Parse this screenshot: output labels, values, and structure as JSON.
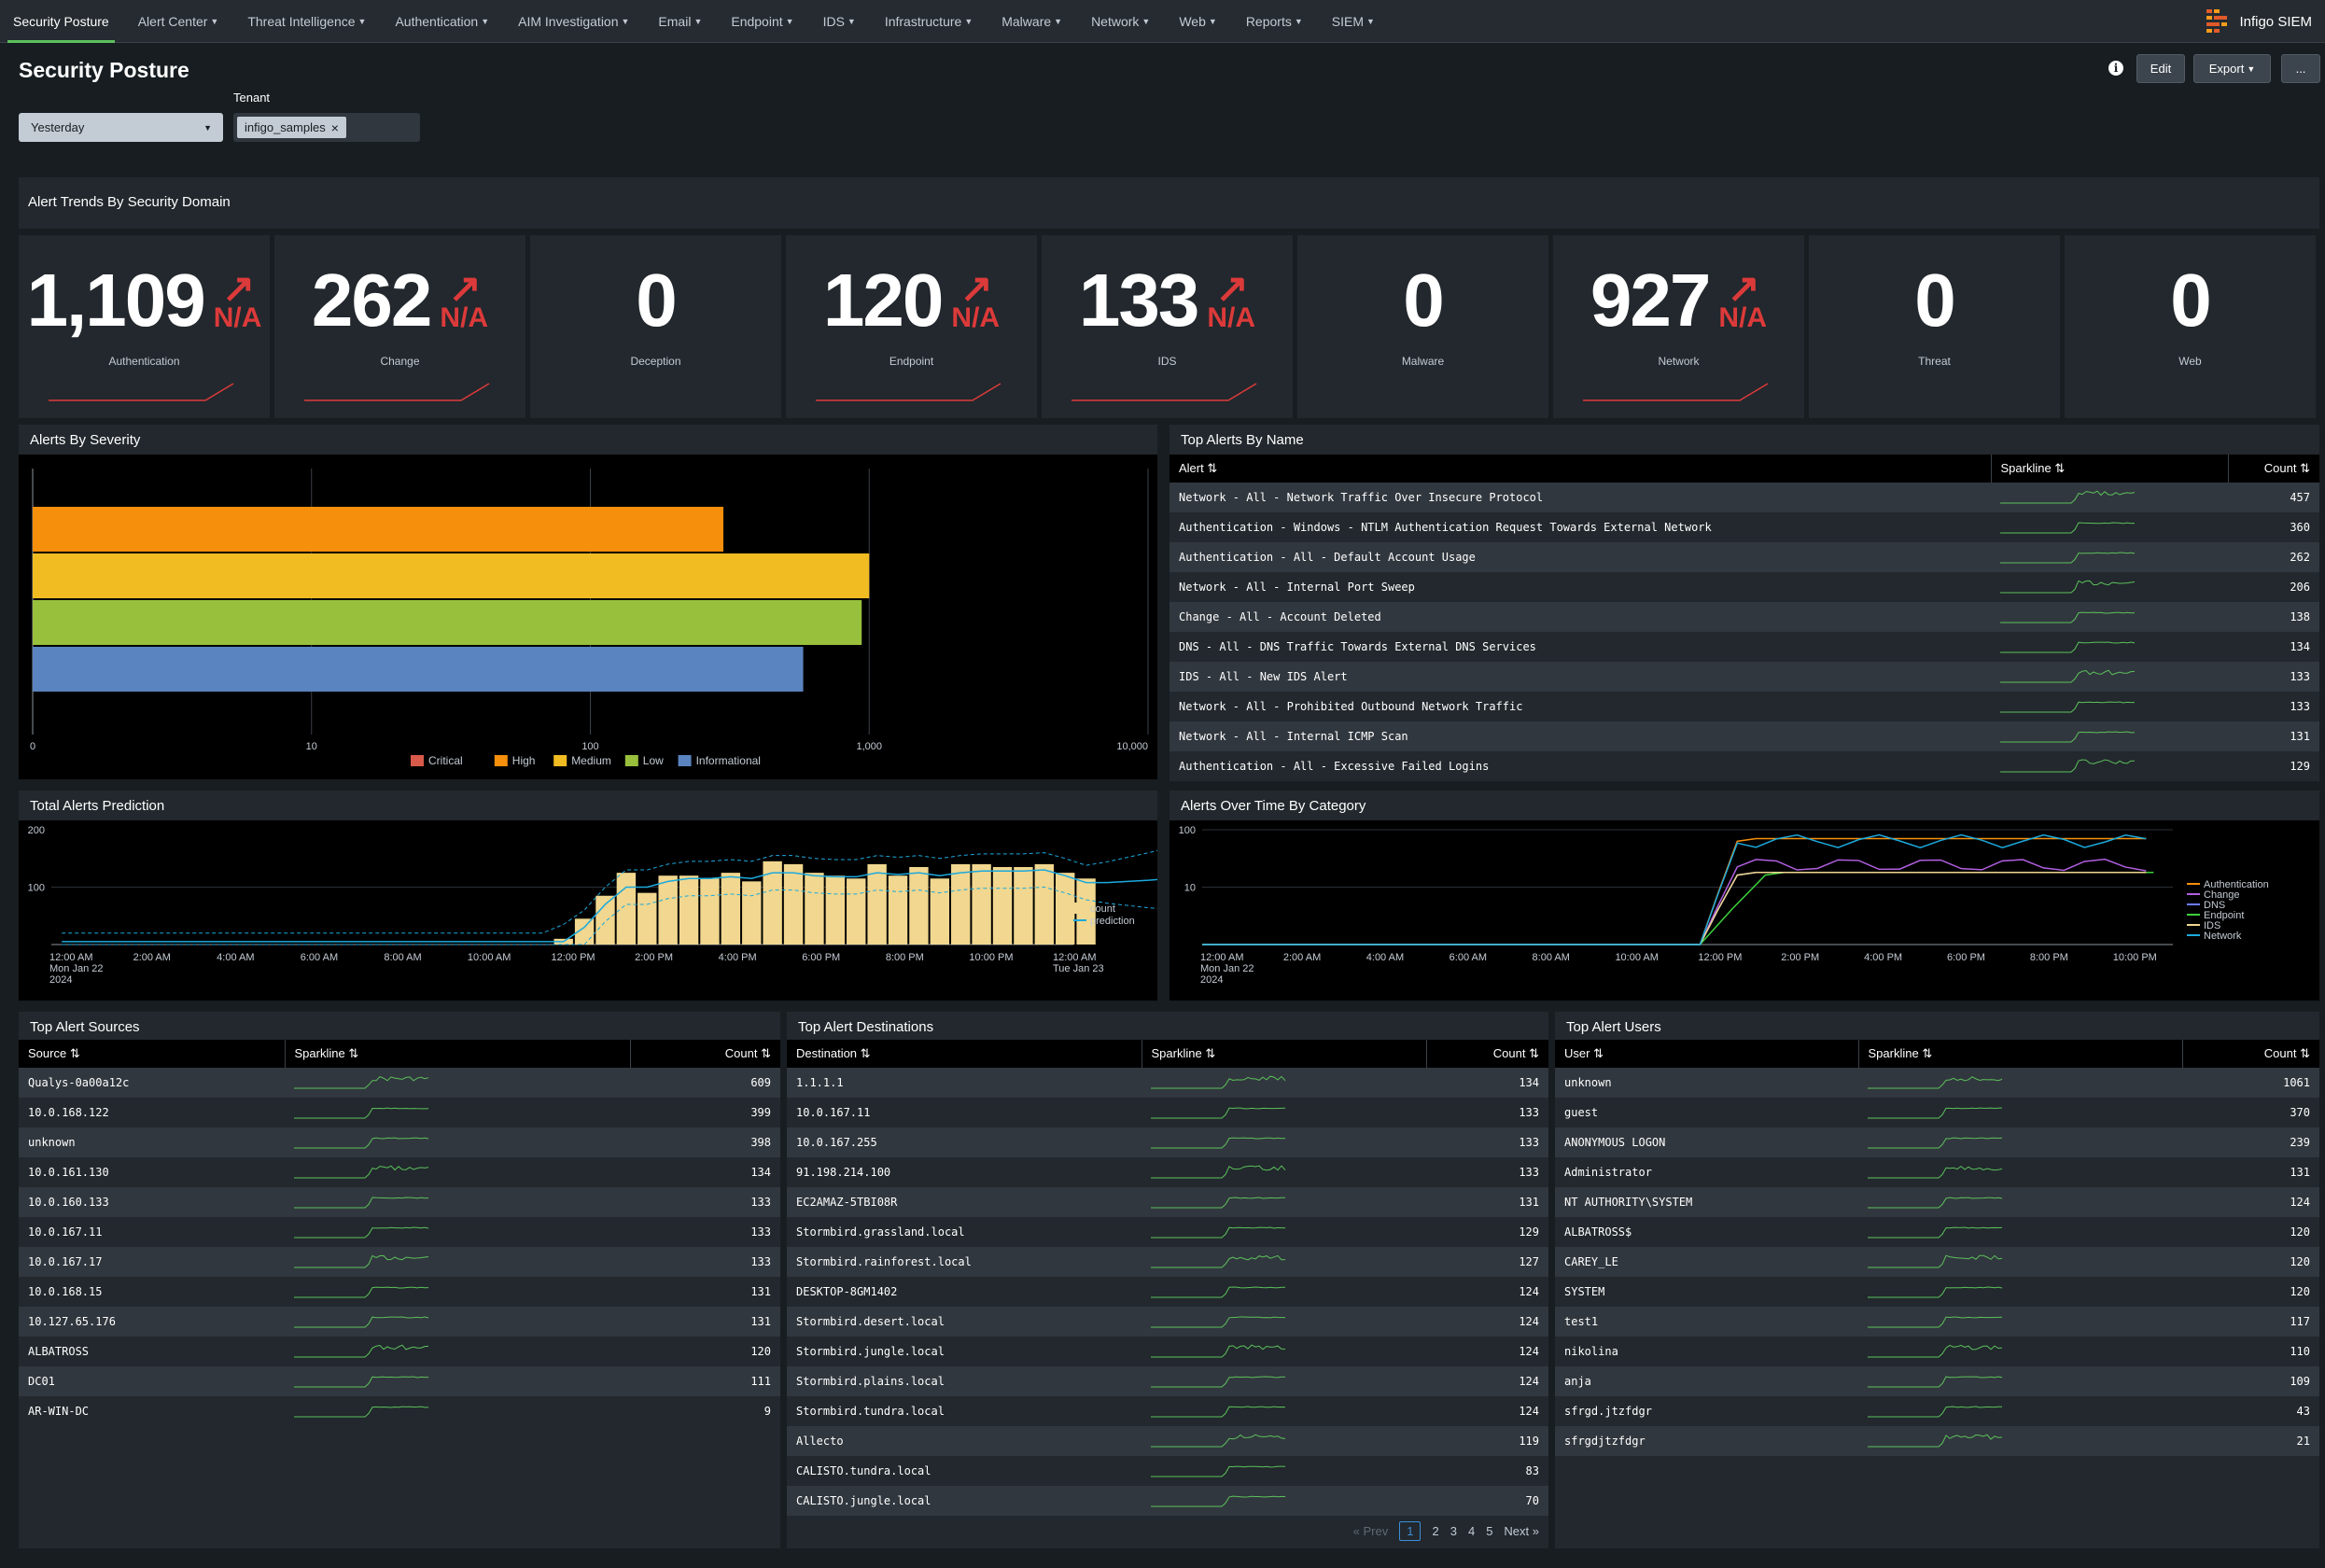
{
  "nav": {
    "items": [
      "Security Posture",
      "Alert Center",
      "Threat Intelligence",
      "Authentication",
      "AIM Investigation",
      "Email",
      "Endpoint",
      "IDS",
      "Infrastructure",
      "Malware",
      "Network",
      "Web",
      "Reports",
      "SIEM"
    ],
    "brand": "Infigo SIEM"
  },
  "page": {
    "title": "Security Posture"
  },
  "toolbar": {
    "edit": "Edit",
    "export": "Export",
    "more": "..."
  },
  "filters": {
    "time": "Yesterday",
    "tenant_label": "Tenant",
    "tenant_value": "infigo_samples"
  },
  "trends": {
    "title": "Alert Trends By Security Domain",
    "kpis": [
      {
        "value": "1,109",
        "trend": "N/A",
        "label": "Authentication",
        "has_trend": true
      },
      {
        "value": "262",
        "trend": "N/A",
        "label": "Change",
        "has_trend": true
      },
      {
        "value": "0",
        "trend": "",
        "label": "Deception",
        "has_trend": false
      },
      {
        "value": "120",
        "trend": "N/A",
        "label": "Endpoint",
        "has_trend": true
      },
      {
        "value": "133",
        "trend": "N/A",
        "label": "IDS",
        "has_trend": true
      },
      {
        "value": "0",
        "trend": "",
        "label": "Malware",
        "has_trend": false
      },
      {
        "value": "927",
        "trend": "N/A",
        "label": "Network",
        "has_trend": true
      },
      {
        "value": "0",
        "trend": "",
        "label": "Threat",
        "has_trend": false
      },
      {
        "value": "0",
        "trend": "",
        "label": "Web",
        "has_trend": false
      }
    ],
    "accent": "#dc3a3a"
  },
  "severity": {
    "title": "Alerts By Severity",
    "chart_data": {
      "type": "bar",
      "orientation": "horizontal",
      "scale": "log",
      "ticks": [
        "0",
        "10",
        "100",
        "1,000",
        "10,000"
      ],
      "series": [
        {
          "name": "Critical",
          "color": "#d85a4a",
          "value": 0
        },
        {
          "name": "High",
          "color": "#f58f0c",
          "value": 300
        },
        {
          "name": "Medium",
          "color": "#f1bc22",
          "value": 1000
        },
        {
          "name": "Low",
          "color": "#98c03c",
          "value": 940
        },
        {
          "name": "Informational",
          "color": "#5a84bf",
          "value": 580
        }
      ],
      "legend": "bottom"
    }
  },
  "top_alerts": {
    "title": "Top Alerts By Name",
    "columns": [
      "Alert",
      "Sparkline",
      "Count"
    ],
    "rows": [
      {
        "name": "Network - All - Network Traffic Over Insecure Protocol",
        "count": "457"
      },
      {
        "name": "Authentication - Windows - NTLM Authentication Request Towards External Network",
        "count": "360"
      },
      {
        "name": "Authentication - All - Default Account Usage",
        "count": "262"
      },
      {
        "name": "Network - All - Internal Port Sweep",
        "count": "206"
      },
      {
        "name": "Change - All - Account Deleted",
        "count": "138"
      },
      {
        "name": "DNS - All - DNS Traffic Towards External DNS Services",
        "count": "134"
      },
      {
        "name": "IDS - All - New IDS Alert",
        "count": "133"
      },
      {
        "name": "Network - All - Prohibited Outbound Network Traffic",
        "count": "133"
      },
      {
        "name": "Network - All - Internal ICMP Scan",
        "count": "131"
      },
      {
        "name": "Authentication - All - Excessive Failed Logins",
        "count": "129"
      }
    ]
  },
  "prediction": {
    "title": "Total Alerts Prediction",
    "chart_data": {
      "type": "bar",
      "x_labels": [
        "12:00 AM\nMon Jan 22\n2024",
        "2:00 AM",
        "4:00 AM",
        "6:00 AM",
        "8:00 AM",
        "10:00 AM",
        "12:00 PM",
        "2:00 PM",
        "4:00 PM",
        "6:00 PM",
        "8:00 PM",
        "10:00 PM",
        "12:00 AM\nTue Jan 23"
      ],
      "y_ticks": [
        "100",
        "200"
      ],
      "ylim": [
        0,
        200
      ],
      "count": [
        0,
        0,
        0,
        0,
        0,
        0,
        0,
        0,
        0,
        0,
        0,
        0,
        0,
        0,
        0,
        0,
        0,
        0,
        0,
        0,
        0,
        0,
        0,
        0,
        10,
        45,
        85,
        125,
        90,
        120,
        120,
        115,
        125,
        110,
        145,
        140,
        125,
        120,
        115,
        140,
        120,
        135,
        115,
        140,
        140,
        135,
        135,
        140,
        125,
        115
      ],
      "prediction": [
        5,
        5,
        5,
        5,
        5,
        5,
        5,
        5,
        5,
        5,
        5,
        5,
        5,
        5,
        5,
        5,
        5,
        5,
        5,
        5,
        5,
        5,
        5,
        5,
        5,
        30,
        70,
        100,
        100,
        110,
        115,
        115,
        118,
        115,
        125,
        125,
        120,
        118,
        118,
        125,
        122,
        125,
        120,
        125,
        128,
        128,
        128,
        130,
        120,
        108,
        108,
        110,
        112,
        115
      ],
      "legend": [
        "count",
        "prediction"
      ],
      "colors": {
        "count": "#f1d78f",
        "prediction": "#1ca9dd"
      }
    }
  },
  "over_time": {
    "title": "Alerts Over Time By Category",
    "chart_data": {
      "type": "line",
      "scale": "log",
      "y_ticks": [
        "10",
        "100"
      ],
      "x_labels": [
        "12:00 AM\nMon Jan 22\n2024",
        "2:00 AM",
        "4:00 AM",
        "6:00 AM",
        "8:00 AM",
        "10:00 AM",
        "12:00 PM",
        "2:00 PM",
        "4:00 PM",
        "6:00 PM",
        "8:00 PM",
        "10:00 PM"
      ],
      "series": [
        {
          "name": "Authentication",
          "color": "#f58f0c"
        },
        {
          "name": "Change",
          "color": "#b15fe0"
        },
        {
          "name": "DNS",
          "color": "#6b7cff"
        },
        {
          "name": "Endpoint",
          "color": "#3cd13c"
        },
        {
          "name": "IDS",
          "color": "#f1d78f"
        },
        {
          "name": "Network",
          "color": "#1ca9dd"
        }
      ]
    }
  },
  "sources": {
    "title": "Top Alert Sources",
    "columns": [
      "Source",
      "Sparkline",
      "Count"
    ],
    "rows": [
      {
        "name": "Qualys-0a00a12c",
        "count": "609"
      },
      {
        "name": "10.0.168.122",
        "count": "399"
      },
      {
        "name": "unknown",
        "count": "398"
      },
      {
        "name": "10.0.161.130",
        "count": "134"
      },
      {
        "name": "10.0.160.133",
        "count": "133"
      },
      {
        "name": "10.0.167.11",
        "count": "133"
      },
      {
        "name": "10.0.167.17",
        "count": "133"
      },
      {
        "name": "10.0.168.15",
        "count": "131"
      },
      {
        "name": "10.127.65.176",
        "count": "131"
      },
      {
        "name": "ALBATROSS",
        "count": "120"
      },
      {
        "name": "DC01",
        "count": "111"
      },
      {
        "name": "AR-WIN-DC",
        "count": "9"
      }
    ]
  },
  "destinations": {
    "title": "Top Alert Destinations",
    "columns": [
      "Destination",
      "Sparkline",
      "Count"
    ],
    "rows": [
      {
        "name": "1.1.1.1",
        "count": "134"
      },
      {
        "name": "10.0.167.11",
        "count": "133"
      },
      {
        "name": "10.0.167.255",
        "count": "133"
      },
      {
        "name": "91.198.214.100",
        "count": "133"
      },
      {
        "name": "EC2AMAZ-5TBI08R",
        "count": "131"
      },
      {
        "name": "Stormbird.grassland.local",
        "count": "129"
      },
      {
        "name": "Stormbird.rainforest.local",
        "count": "127"
      },
      {
        "name": "DESKTOP-8GM1402",
        "count": "124"
      },
      {
        "name": "Stormbird.desert.local",
        "count": "124"
      },
      {
        "name": "Stormbird.jungle.local",
        "count": "124"
      },
      {
        "name": "Stormbird.plains.local",
        "count": "124"
      },
      {
        "name": "Stormbird.tundra.local",
        "count": "124"
      },
      {
        "name": "Allecto",
        "count": "119"
      },
      {
        "name": "CALISTO.tundra.local",
        "count": "83"
      },
      {
        "name": "CALISTO.jungle.local",
        "count": "70"
      }
    ],
    "pager": {
      "prev": "« Prev",
      "pages": [
        "1",
        "2",
        "3",
        "4",
        "5"
      ],
      "next": "Next »"
    }
  },
  "users": {
    "title": "Top Alert Users",
    "columns": [
      "User",
      "Sparkline",
      "Count"
    ],
    "rows": [
      {
        "name": "unknown",
        "count": "1061"
      },
      {
        "name": "guest",
        "count": "370"
      },
      {
        "name": "ANONYMOUS LOGON",
        "count": "239"
      },
      {
        "name": "Administrator",
        "count": "131"
      },
      {
        "name": "NT AUTHORITY\\SYSTEM",
        "count": "124"
      },
      {
        "name": "ALBATROSS$",
        "count": "120"
      },
      {
        "name": "CAREY_LE",
        "count": "120"
      },
      {
        "name": "SYSTEM",
        "count": "120"
      },
      {
        "name": "test1",
        "count": "117"
      },
      {
        "name": "nikolina",
        "count": "110"
      },
      {
        "name": "anja",
        "count": "109"
      },
      {
        "name": "sfrgd.jtzfdgr",
        "count": "43"
      },
      {
        "name": "sfrgdjtzfdgr",
        "count": "21"
      }
    ]
  }
}
